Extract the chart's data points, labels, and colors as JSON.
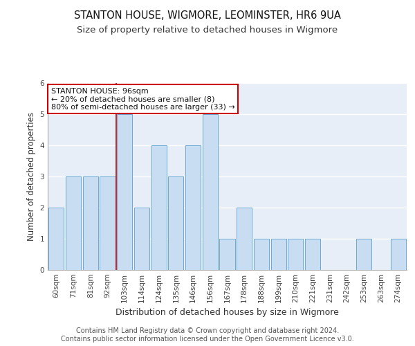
{
  "title": "STANTON HOUSE, WIGMORE, LEOMINSTER, HR6 9UA",
  "subtitle": "Size of property relative to detached houses in Wigmore",
  "xlabel": "Distribution of detached houses by size in Wigmore",
  "ylabel": "Number of detached properties",
  "categories": [
    "60sqm",
    "71sqm",
    "81sqm",
    "92sqm",
    "103sqm",
    "114sqm",
    "124sqm",
    "135sqm",
    "146sqm",
    "156sqm",
    "167sqm",
    "178sqm",
    "188sqm",
    "199sqm",
    "210sqm",
    "221sqm",
    "231sqm",
    "242sqm",
    "253sqm",
    "263sqm",
    "274sqm"
  ],
  "values": [
    2,
    3,
    3,
    3,
    5,
    2,
    4,
    3,
    4,
    5,
    1,
    2,
    1,
    1,
    1,
    1,
    0,
    0,
    1,
    0,
    1
  ],
  "bar_color": "#c9ddf2",
  "bar_edge_color": "#6aaad4",
  "vline_x": 3.5,
  "vline_color": "#cc0000",
  "annotation_text": "STANTON HOUSE: 96sqm\n← 20% of detached houses are smaller (8)\n80% of semi-detached houses are larger (33) →",
  "annotation_box_color": "white",
  "annotation_box_edge_color": "#cc0000",
  "ylim": [
    0,
    6
  ],
  "yticks": [
    0,
    1,
    2,
    3,
    4,
    5,
    6
  ],
  "footer_text": "Contains HM Land Registry data © Crown copyright and database right 2024.\nContains public sector information licensed under the Open Government Licence v3.0.",
  "title_fontsize": 10.5,
  "subtitle_fontsize": 9.5,
  "xlabel_fontsize": 9,
  "ylabel_fontsize": 8.5,
  "tick_fontsize": 7.5,
  "annotation_fontsize": 8,
  "footer_fontsize": 7,
  "bg_color": "#e8eef8"
}
